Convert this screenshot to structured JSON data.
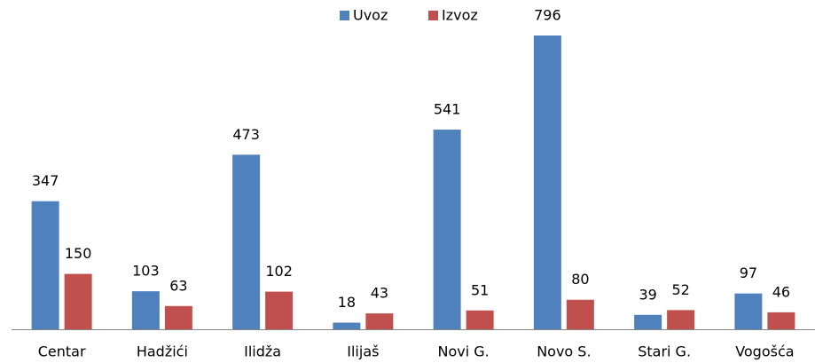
{
  "chart_data": {
    "type": "bar",
    "categories": [
      "Centar",
      "Hadžići",
      "Ilidža",
      "Ilijaš",
      "Novi G.",
      "Novo S.",
      "Stari G.",
      "Vogošća"
    ],
    "series": [
      {
        "name": "Uvoz",
        "color": "#4f81bd",
        "values": [
          347,
          103,
          473,
          18,
          541,
          796,
          39,
          97
        ]
      },
      {
        "name": "Izvoz",
        "color": "#c0504d",
        "values": [
          150,
          63,
          102,
          43,
          51,
          80,
          52,
          46
        ]
      }
    ],
    "legend": "top"
  }
}
